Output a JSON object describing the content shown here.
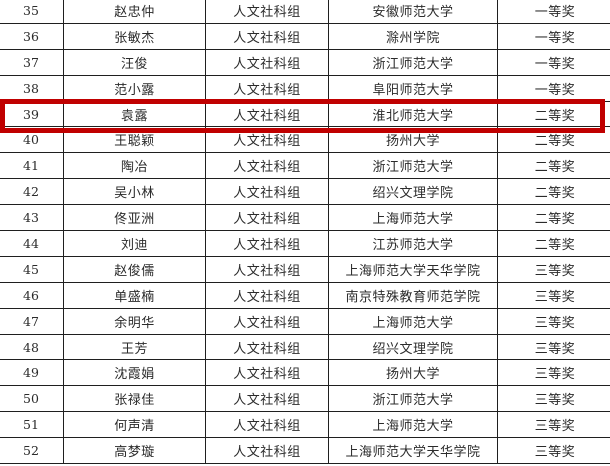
{
  "table": {
    "group_label": "人文社科组",
    "columns": [
      "number",
      "name",
      "group",
      "school",
      "award"
    ],
    "rows": [
      {
        "number": "35",
        "name": "赵忠仲",
        "group": "人文社科组",
        "school": "安徽师范大学",
        "award": "一等奖",
        "highlighted": false
      },
      {
        "number": "36",
        "name": "张敏杰",
        "group": "人文社科组",
        "school": "滁州学院",
        "award": "一等奖",
        "highlighted": false
      },
      {
        "number": "37",
        "name": "汪俊",
        "group": "人文社科组",
        "school": "浙江师范大学",
        "award": "一等奖",
        "highlighted": false
      },
      {
        "number": "38",
        "name": "范小露",
        "group": "人文社科组",
        "school": "阜阳师范大学",
        "award": "一等奖",
        "highlighted": false
      },
      {
        "number": "39",
        "name": "袁露",
        "group": "人文社科组",
        "school": "淮北师范大学",
        "award": "二等奖",
        "highlighted": true
      },
      {
        "number": "40",
        "name": "王聪颖",
        "group": "人文社科组",
        "school": "扬州大学",
        "award": "二等奖",
        "highlighted": false
      },
      {
        "number": "41",
        "name": "陶冶",
        "group": "人文社科组",
        "school": "浙江师范大学",
        "award": "二等奖",
        "highlighted": false
      },
      {
        "number": "42",
        "name": "吴小林",
        "group": "人文社科组",
        "school": "绍兴文理学院",
        "award": "二等奖",
        "highlighted": false
      },
      {
        "number": "43",
        "name": "佟亚洲",
        "group": "人文社科组",
        "school": "上海师范大学",
        "award": "二等奖",
        "highlighted": false
      },
      {
        "number": "44",
        "name": "刘迪",
        "group": "人文社科组",
        "school": "江苏师范大学",
        "award": "二等奖",
        "highlighted": false
      },
      {
        "number": "45",
        "name": "赵俊儒",
        "group": "人文社科组",
        "school": "上海师范大学天华学院",
        "award": "三等奖",
        "highlighted": false
      },
      {
        "number": "46",
        "name": "单盛楠",
        "group": "人文社科组",
        "school": "南京特殊教育师范学院",
        "award": "三等奖",
        "highlighted": false
      },
      {
        "number": "47",
        "name": "余明华",
        "group": "人文社科组",
        "school": "上海师范大学",
        "award": "三等奖",
        "highlighted": false
      },
      {
        "number": "48",
        "name": "王芳",
        "group": "人文社科组",
        "school": "绍兴文理学院",
        "award": "三等奖",
        "highlighted": false
      },
      {
        "number": "49",
        "name": "沈霞娟",
        "group": "人文社科组",
        "school": "扬州大学",
        "award": "三等奖",
        "highlighted": false
      },
      {
        "number": "50",
        "name": "张禄佳",
        "group": "人文社科组",
        "school": "浙江师范大学",
        "award": "三等奖",
        "highlighted": false
      },
      {
        "number": "51",
        "name": "何声清",
        "group": "人文社科组",
        "school": "上海师范大学",
        "award": "三等奖",
        "highlighted": false
      },
      {
        "number": "52",
        "name": "高梦璇",
        "group": "人文社科组",
        "school": "上海师范大学天华学院",
        "award": "三等奖",
        "highlighted": false
      }
    ]
  },
  "highlight": {
    "row_number": "39",
    "color": "#c00000"
  },
  "colors": {
    "border": "#1f1f1f",
    "text": "#2b2b2b",
    "background": "#ffffff"
  }
}
